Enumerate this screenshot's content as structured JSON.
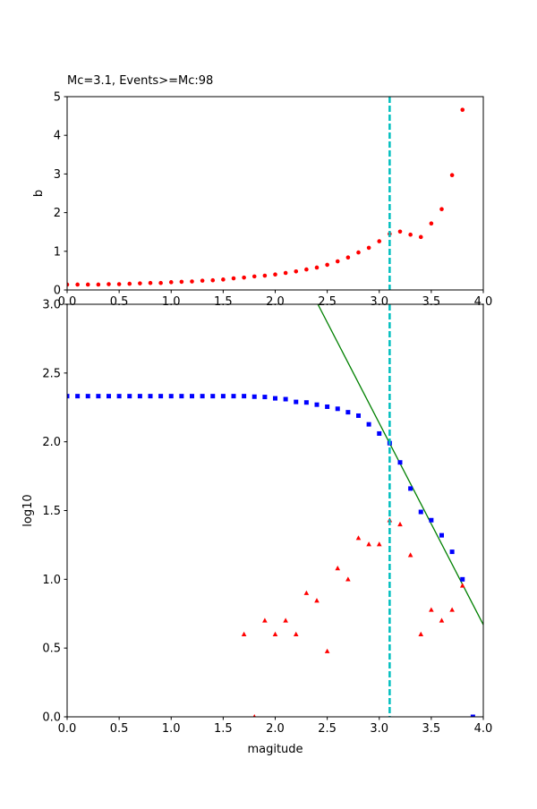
{
  "chart_data": [
    {
      "type": "scatter",
      "title": "Mc=3.1, Events>=Mc:98",
      "y_label": "b",
      "xlim": [
        0,
        4
      ],
      "ylim": [
        0,
        5
      ],
      "xticks": [
        {
          "value": 0,
          "label": "0.0"
        },
        {
          "value": 0.5,
          "label": "0.5"
        },
        {
          "value": 1,
          "label": "1.0"
        },
        {
          "value": 1.5,
          "label": "1.5"
        },
        {
          "value": 2,
          "label": "2.0"
        },
        {
          "value": 2.5,
          "label": "2.5"
        },
        {
          "value": 3,
          "label": "3.0"
        },
        {
          "value": 3.5,
          "label": "3.5"
        },
        {
          "value": 4,
          "label": "4.0"
        }
      ],
      "yticks": [
        0,
        1,
        2,
        3,
        4,
        5
      ],
      "vline": {
        "x": 3.1,
        "color": "#00bfbf"
      },
      "series": [
        {
          "marker": "circle",
          "color": "#ff0000",
          "x": [
            0,
            0.1,
            0.2,
            0.3,
            0.4,
            0.5,
            0.6,
            0.7,
            0.8,
            0.9,
            1.0,
            1.1,
            1.2,
            1.3,
            1.4,
            1.5,
            1.6,
            1.7,
            1.8,
            1.9,
            2.0,
            2.1,
            2.2,
            2.3,
            2.4,
            2.5,
            2.6,
            2.7,
            2.8,
            2.9,
            3.0,
            3.1,
            3.2,
            3.3,
            3.4,
            3.5,
            3.6,
            3.7,
            3.8
          ],
          "values": [
            0.14,
            0.14,
            0.14,
            0.14,
            0.15,
            0.15,
            0.16,
            0.17,
            0.18,
            0.18,
            0.2,
            0.21,
            0.22,
            0.24,
            0.25,
            0.27,
            0.3,
            0.32,
            0.35,
            0.37,
            0.4,
            0.44,
            0.48,
            0.53,
            0.58,
            0.65,
            0.74,
            0.84,
            0.97,
            1.09,
            1.26,
            1.45,
            1.51,
            1.43,
            1.37,
            1.72,
            2.09,
            2.97,
            4.66
          ]
        }
      ]
    },
    {
      "type": "scatter",
      "x_label": "magitude",
      "y_label": "log10",
      "xlim": [
        0,
        4
      ],
      "ylim": [
        0,
        3
      ],
      "xticks": [
        {
          "value": 0,
          "label": "0.0"
        },
        {
          "value": 0.5,
          "label": "0.5"
        },
        {
          "value": 1,
          "label": "1.0"
        },
        {
          "value": 1.5,
          "label": "1.5"
        },
        {
          "value": 2,
          "label": "2.0"
        },
        {
          "value": 2.5,
          "label": "2.5"
        },
        {
          "value": 3,
          "label": "3.0"
        },
        {
          "value": 3.5,
          "label": "3.5"
        },
        {
          "value": 4,
          "label": "4.0"
        }
      ],
      "yticks": [
        {
          "value": 0,
          "label": "0.0"
        },
        {
          "value": 0.5,
          "label": "0.5"
        },
        {
          "value": 1,
          "label": "1.0"
        },
        {
          "value": 1.5,
          "label": "1.5"
        },
        {
          "value": 2,
          "label": "2.0"
        },
        {
          "value": 2.5,
          "label": "2.5"
        },
        {
          "value": 3,
          "label": "3.0"
        }
      ],
      "vline": {
        "x": 3.1,
        "color": "#00bfbf"
      },
      "fit_line": {
        "x": [
          2.41,
          4.0
        ],
        "y": [
          3.0,
          0.67
        ],
        "color": "#008000"
      },
      "series": [
        {
          "marker": "square",
          "color": "#0000ff",
          "x": [
            0,
            0.1,
            0.2,
            0.3,
            0.4,
            0.5,
            0.6,
            0.7,
            0.8,
            0.9,
            1.0,
            1.1,
            1.2,
            1.3,
            1.4,
            1.5,
            1.6,
            1.7,
            1.8,
            1.9,
            2.0,
            2.1,
            2.2,
            2.3,
            2.4,
            2.5,
            2.6,
            2.7,
            2.8,
            2.9,
            3.0,
            3.1,
            3.2,
            3.3,
            3.4,
            3.5,
            3.6,
            3.7,
            3.8,
            3.9
          ],
          "values": [
            2.332,
            2.332,
            2.332,
            2.332,
            2.332,
            2.332,
            2.332,
            2.332,
            2.332,
            2.332,
            2.332,
            2.332,
            2.332,
            2.332,
            2.332,
            2.332,
            2.332,
            2.332,
            2.328,
            2.326,
            2.316,
            2.31,
            2.29,
            2.286,
            2.27,
            2.255,
            2.24,
            2.215,
            2.19,
            2.127,
            2.06,
            1.99,
            1.85,
            1.66,
            1.49,
            1.43,
            1.32,
            1.2,
            1.0,
            0.0
          ]
        },
        {
          "marker": "triangle",
          "color": "#ff0000",
          "x": [
            1.7,
            1.8,
            1.9,
            2.0,
            2.1,
            2.2,
            2.3,
            2.4,
            2.5,
            2.6,
            2.7,
            2.8,
            2.9,
            3.0,
            3.1,
            3.2,
            3.3,
            3.4,
            3.5,
            3.6,
            3.7,
            3.8
          ],
          "values": [
            0.6,
            0.0,
            0.7,
            0.6,
            0.7,
            0.6,
            0.9,
            0.845,
            0.477,
            1.08,
            1.0,
            1.3,
            1.255,
            1.255,
            1.43,
            1.4,
            1.176,
            0.6,
            0.778,
            0.7,
            0.778,
            0.954
          ]
        }
      ]
    }
  ]
}
